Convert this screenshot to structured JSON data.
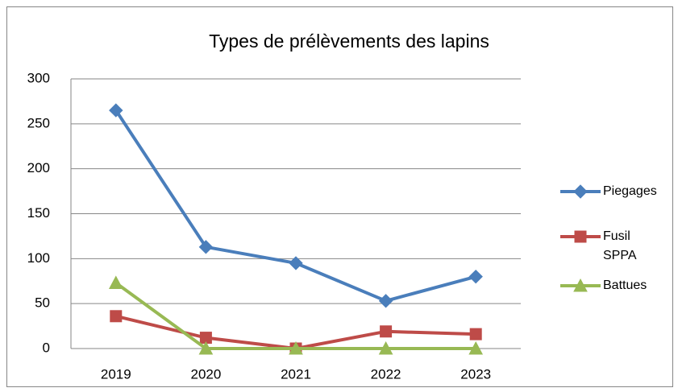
{
  "chart_data": {
    "type": "line",
    "title": "Types de prélèvements des lapins",
    "categories": [
      "2019",
      "2020",
      "2021",
      "2022",
      "2023"
    ],
    "series": [
      {
        "name": "Piegages",
        "color": "#4a7ebb",
        "marker": "diamond",
        "values": [
          265,
          113,
          95,
          53,
          80
        ]
      },
      {
        "name": "Fusil SPPA",
        "color": "#be4b48",
        "marker": "square",
        "values": [
          36,
          12,
          0,
          19,
          16
        ]
      },
      {
        "name": "Battues",
        "color": "#98b954",
        "marker": "triangle",
        "values": [
          73,
          0,
          0,
          0,
          0
        ]
      }
    ],
    "ylim": [
      0,
      300
    ],
    "yticks": [
      0,
      50,
      100,
      150,
      200,
      250,
      300
    ],
    "grid": true,
    "legend": "right"
  }
}
